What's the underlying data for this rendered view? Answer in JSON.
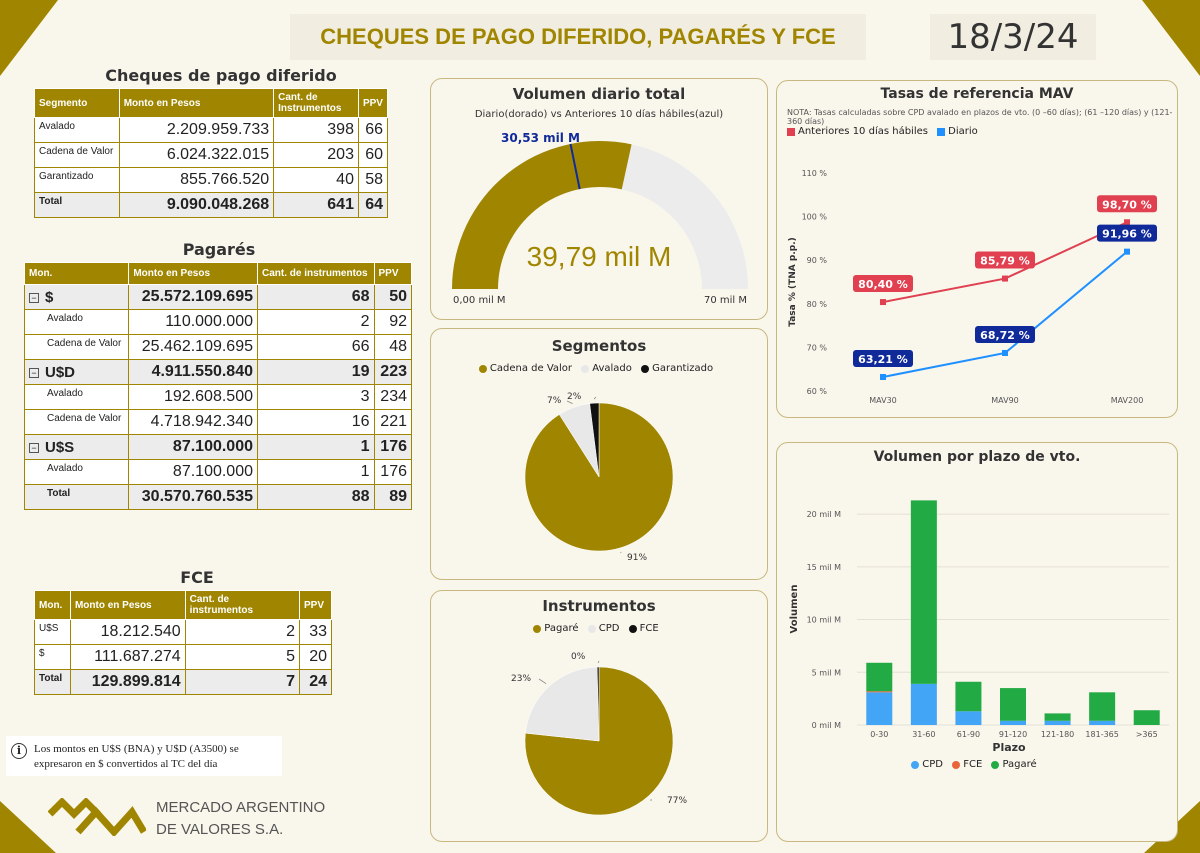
{
  "header": {
    "title": "CHEQUES DE PAGO DIFERIDO, PAGARÉS Y FCE",
    "date": "18/3/24"
  },
  "colors": {
    "gold": "#a08600",
    "blue": "#1e90ff",
    "navy": "#102a9a",
    "red": "#e0404f",
    "green": "#22aa44",
    "orange": "#e8643a",
    "grey": "#e8e8e8"
  },
  "cpd": {
    "title": "Cheques de pago diferido",
    "columns": [
      "Segmento",
      "Monto en Pesos",
      "Cant. de Instrumentos",
      "PPV"
    ],
    "rows": [
      {
        "seg": "Avalado",
        "monto": "2.209.959.733",
        "cant": "398",
        "ppv": "66"
      },
      {
        "seg": "Cadena de Valor",
        "monto": "6.024.322.015",
        "cant": "203",
        "ppv": "60"
      },
      {
        "seg": "Garantizado",
        "monto": "855.766.520",
        "cant": "40",
        "ppv": "58"
      }
    ],
    "total": {
      "seg": "Total",
      "monto": "9.090.048.268",
      "cant": "641",
      "ppv": "64"
    }
  },
  "pagares": {
    "title": "Pagarés",
    "columns": [
      "Mon.",
      "Monto en Pesos",
      "Cant. de instrumentos",
      "PPV"
    ],
    "groups": [
      {
        "expand": "−",
        "mon": "$",
        "monto": "25.572.109.695",
        "cant": "68",
        "ppv": "50",
        "rows": [
          {
            "seg": "Avalado",
            "monto": "110.000.000",
            "cant": "2",
            "ppv": "92"
          },
          {
            "seg": "Cadena de Valor",
            "monto": "25.462.109.695",
            "cant": "66",
            "ppv": "48"
          }
        ]
      },
      {
        "expand": "−",
        "mon": "U$D",
        "monto": "4.911.550.840",
        "cant": "19",
        "ppv": "223",
        "rows": [
          {
            "seg": "Avalado",
            "monto": "192.608.500",
            "cant": "3",
            "ppv": "234"
          },
          {
            "seg": "Cadena de Valor",
            "monto": "4.718.942.340",
            "cant": "16",
            "ppv": "221"
          }
        ]
      },
      {
        "expand": "−",
        "mon": "U$S",
        "monto": "87.100.000",
        "cant": "1",
        "ppv": "176",
        "rows": [
          {
            "seg": "Avalado",
            "monto": "87.100.000",
            "cant": "1",
            "ppv": "176"
          }
        ]
      }
    ],
    "total": {
      "seg": "Total",
      "monto": "30.570.760.535",
      "cant": "88",
      "ppv": "89"
    }
  },
  "fce": {
    "title": "FCE",
    "columns": [
      "Mon.",
      "Monto en Pesos",
      "Cant. de instrumentos",
      "PPV"
    ],
    "rows": [
      {
        "seg": "U$S",
        "monto": "18.212.540",
        "cant": "2",
        "ppv": "33"
      },
      {
        "seg": "$",
        "monto": "111.687.274",
        "cant": "5",
        "ppv": "20"
      }
    ],
    "total": {
      "seg": "Total",
      "monto": "129.899.814",
      "cant": "7",
      "ppv": "24"
    }
  },
  "note": {
    "text": "Los montos en U$S (BNA) y U$D (A3500) se expresaron en $ convertidos al TC del día",
    "icon": "info-icon"
  },
  "logo": {
    "line1": "MERCADO ARGENTINO",
    "line2": "DE VALORES S.A."
  },
  "gauge": {
    "title": "Volumen diario total",
    "subtitle": "Diario(dorado) vs Anteriores 10 días hábiles(azul)",
    "value_label": "39,79 mil M",
    "target_label": "30,53 mil M",
    "min_label": "0,00 mil M",
    "max_label": "70 mil M"
  },
  "segmentos": {
    "title": "Segmentos",
    "legend": [
      "Cadena de Valor",
      "Avalado",
      "Garantizado"
    ],
    "slice_labels": [
      "91%",
      "7%",
      "2%"
    ]
  },
  "instrumentos": {
    "title": "Instrumentos",
    "legend": [
      "Pagaré",
      "CPD",
      "FCE"
    ],
    "slice_labels": [
      "77%",
      "23%",
      "0%"
    ]
  },
  "tasas": {
    "title": "Tasas de referencia MAV",
    "note": "NOTA: Tasas calculadas sobre CPD avalado en plazos de vto. (0 –60 días); (61 –120 días) y (121-360 días)",
    "legend": [
      "Anteriores 10 días hábiles",
      "Diario"
    ],
    "ylabel": "Tasa % (TNA p.p.)",
    "yticks": [
      "60 %",
      "70 %",
      "80 %",
      "90 %",
      "100 %",
      "110 %"
    ],
    "point_labels_prev": [
      "80,40 %",
      "85,79 %",
      "98,70 %"
    ],
    "point_labels_daily": [
      "63,21 %",
      "68,72 %",
      "91,96 %"
    ]
  },
  "plazo": {
    "title": "Volumen por plazo de vto.",
    "ylabel": "Volumen",
    "xlabel": "Plazo",
    "yticks": [
      "0 mil M",
      "5 mil M",
      "10 mil M",
      "15 mil M",
      "20 mil M"
    ],
    "legend": [
      "CPD",
      "FCE",
      "Pagaré"
    ]
  },
  "chart_data": [
    {
      "type": "gauge",
      "title": "Volumen diario total",
      "value": 39.79,
      "target": 30.53,
      "min": 0,
      "max": 70,
      "unit": "mil M"
    },
    {
      "type": "pie",
      "title": "Segmentos",
      "categories": [
        "Cadena de Valor",
        "Avalado",
        "Garantizado"
      ],
      "values": [
        91,
        7,
        2
      ],
      "colors": [
        "#a08600",
        "#e8e8e8",
        "#111111"
      ]
    },
    {
      "type": "pie",
      "title": "Instrumentos",
      "categories": [
        "Pagaré",
        "CPD",
        "FCE"
      ],
      "values": [
        77,
        23,
        0.4
      ],
      "colors": [
        "#a08600",
        "#e8e8e8",
        "#111111"
      ]
    },
    {
      "type": "line",
      "title": "Tasas de referencia MAV",
      "categories": [
        "MAV30",
        "MAV90",
        "MAV200"
      ],
      "series": [
        {
          "name": "Anteriores 10 días hábiles",
          "values": [
            80.4,
            85.79,
            98.7
          ],
          "color": "#e0404f"
        },
        {
          "name": "Diario",
          "values": [
            63.21,
            68.72,
            91.96
          ],
          "color": "#1e90ff"
        }
      ],
      "ylabel": "Tasa % (TNA p.p.)",
      "ylim": [
        60,
        110
      ]
    },
    {
      "type": "bar",
      "stacked": true,
      "title": "Volumen por plazo de vto.",
      "categories": [
        "0-30",
        "31-60",
        "61-90",
        "91-120",
        "121-180",
        "181-365",
        ">365"
      ],
      "series": [
        {
          "name": "CPD",
          "values": [
            3.1,
            3.9,
            1.3,
            0.4,
            0.4,
            0.4,
            0.0
          ],
          "color": "#42a5f5"
        },
        {
          "name": "FCE",
          "values": [
            0.1,
            0.0,
            0.0,
            0.0,
            0.0,
            0.0,
            0.0
          ],
          "color": "#e8643a"
        },
        {
          "name": "Pagaré",
          "values": [
            2.7,
            17.4,
            2.8,
            3.1,
            0.7,
            2.7,
            1.4
          ],
          "color": "#22aa44"
        }
      ],
      "xlabel": "Plazo",
      "ylabel": "Volumen",
      "ylim": [
        0,
        22
      ],
      "unit": "mil M"
    }
  ]
}
